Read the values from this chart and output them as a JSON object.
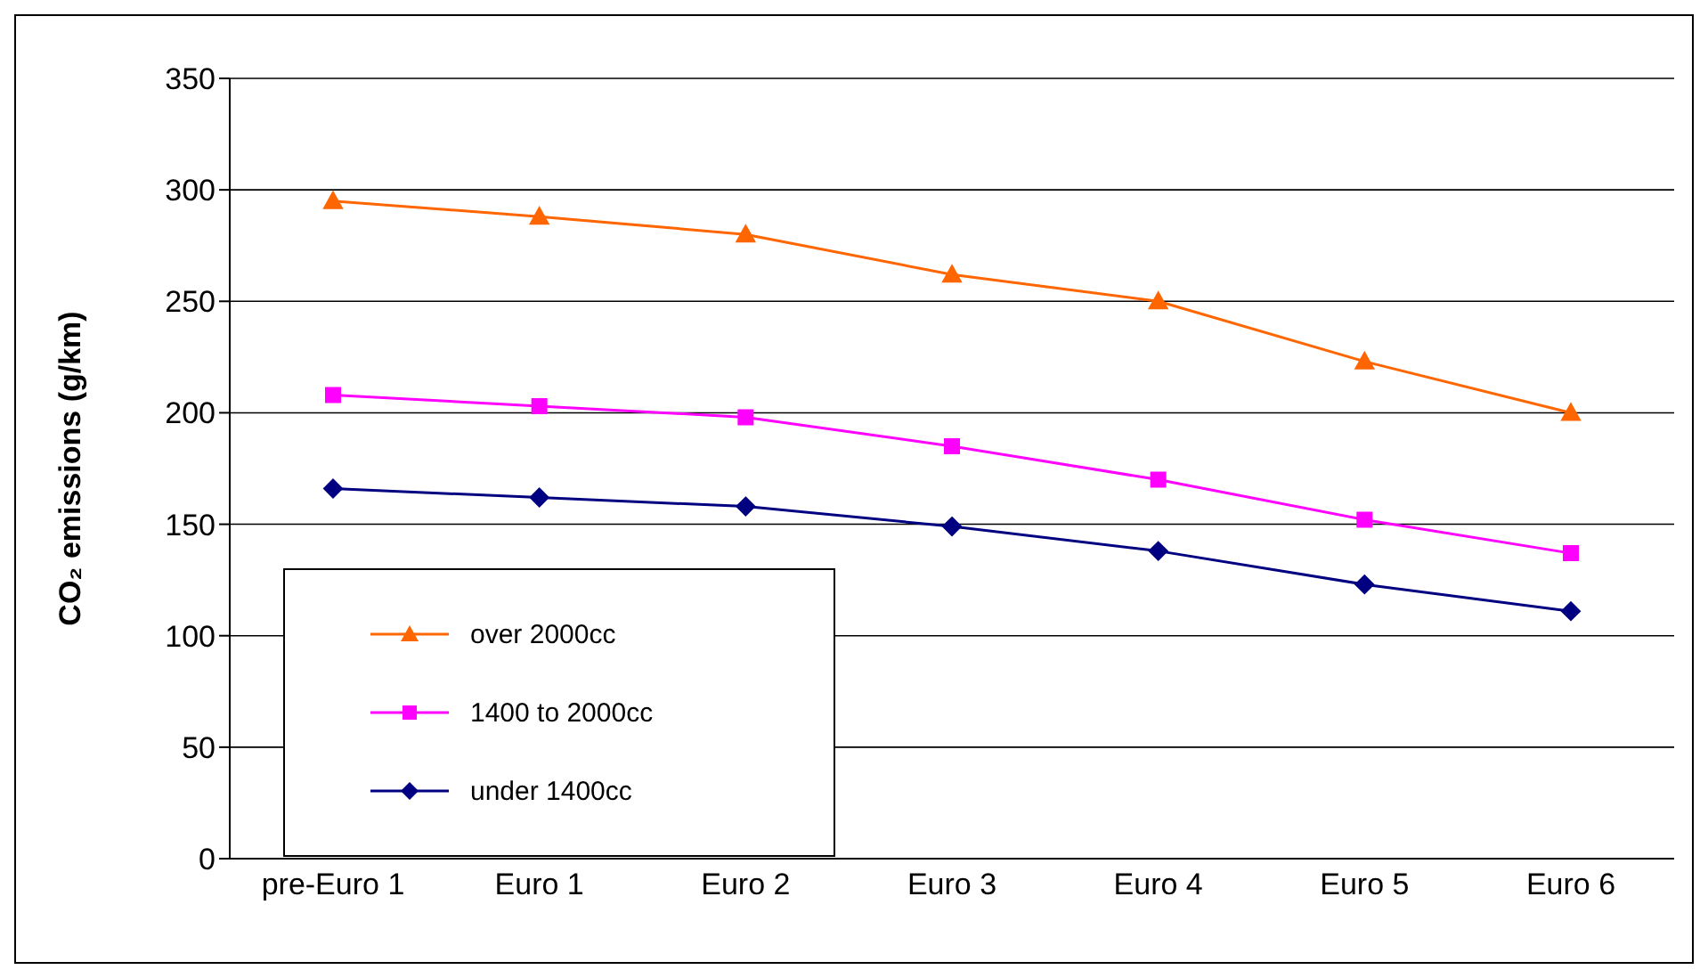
{
  "chart_data": {
    "type": "line",
    "ylabel": "CO₂ emissions (g/km)",
    "categories": [
      "pre-Euro 1",
      "Euro 1",
      "Euro 2",
      "Euro 3",
      "Euro 4",
      "Euro 5",
      "Euro 6"
    ],
    "series": [
      {
        "name": "over 2000cc",
        "color": "#ff6600",
        "marker": "triangle",
        "values": [
          295,
          288,
          280,
          262,
          250,
          223,
          200
        ]
      },
      {
        "name": "1400 to 2000cc",
        "color": "#ff00ff",
        "marker": "square",
        "values": [
          208,
          203,
          198,
          185,
          170,
          152,
          137
        ]
      },
      {
        "name": "under 1400cc",
        "color": "#000080",
        "marker": "diamond",
        "values": [
          166,
          162,
          158,
          149,
          138,
          123,
          111
        ]
      }
    ],
    "ylim": [
      0,
      350
    ],
    "yticks": [
      0,
      50,
      100,
      150,
      200,
      250,
      300,
      350
    ],
    "grid": "y",
    "legend": "bottom left",
    "line_style": "solid"
  }
}
